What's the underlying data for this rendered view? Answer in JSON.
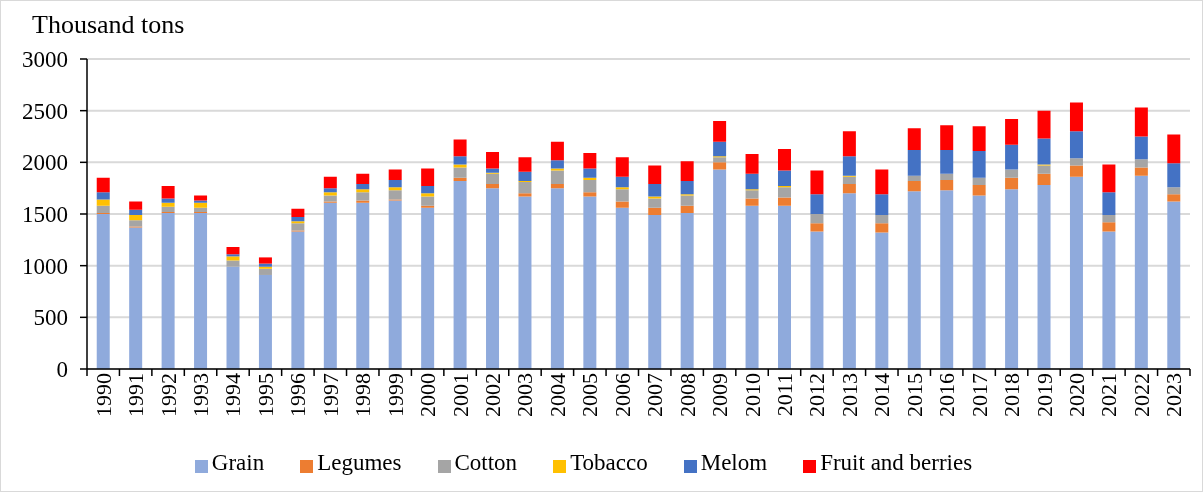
{
  "chart_data": {
    "type": "bar",
    "stacked": true,
    "ylabel": "Thousand tons",
    "categories": [
      "1990",
      "1991",
      "1992",
      "1993",
      "1994",
      "1995",
      "1996",
      "1997",
      "1998",
      "1999",
      "2000",
      "2001",
      "2002",
      "2003",
      "2004",
      "2005",
      "2006",
      "2007",
      "2008",
      "2009",
      "2010",
      "2011",
      "2012",
      "2013",
      "2014",
      "2015",
      "2016",
      "2017",
      "2018",
      "2019",
      "2020",
      "2021",
      "2022",
      "2023"
    ],
    "series": [
      {
        "name": "Grain",
        "color": "#8faadc",
        "values": [
          1500,
          1370,
          1510,
          1510,
          990,
          910,
          1330,
          1610,
          1610,
          1630,
          1560,
          1820,
          1750,
          1670,
          1750,
          1670,
          1560,
          1490,
          1510,
          1930,
          1580,
          1580,
          1330,
          1700,
          1320,
          1720,
          1730,
          1680,
          1740,
          1780,
          1860,
          1330,
          1870,
          1620
        ]
      },
      {
        "name": "Legumes",
        "color": "#ed7d31",
        "values": [
          10,
          10,
          10,
          10,
          0,
          0,
          10,
          10,
          20,
          10,
          20,
          30,
          40,
          30,
          40,
          40,
          60,
          70,
          70,
          70,
          70,
          80,
          80,
          90,
          90,
          100,
          100,
          100,
          110,
          110,
          110,
          90,
          80,
          70
        ]
      },
      {
        "name": "Cotton",
        "color": "#a5a5a5",
        "values": [
          70,
          60,
          50,
          40,
          60,
          60,
          70,
          60,
          80,
          90,
          90,
          100,
          100,
          110,
          130,
          120,
          120,
          90,
          100,
          50,
          80,
          100,
          90,
          70,
          80,
          50,
          60,
          70,
          80,
          80,
          70,
          70,
          80,
          70
        ]
      },
      {
        "name": "Tobacco",
        "color": "#ffc000",
        "values": [
          60,
          50,
          40,
          50,
          40,
          20,
          20,
          30,
          30,
          30,
          30,
          30,
          10,
          10,
          20,
          20,
          20,
          20,
          10,
          10,
          10,
          10,
          0,
          10,
          0,
          0,
          0,
          0,
          0,
          10,
          0,
          0,
          0,
          0
        ]
      },
      {
        "name": "Melom",
        "color": "#4472c4",
        "values": [
          70,
          50,
          40,
          20,
          20,
          30,
          40,
          40,
          50,
          70,
          70,
          80,
          40,
          90,
          80,
          90,
          100,
          120,
          130,
          140,
          150,
          150,
          190,
          190,
          200,
          250,
          230,
          260,
          240,
          250,
          260,
          220,
          220,
          230
        ]
      },
      {
        "name": "Fruit and berries",
        "color": "#ff0000",
        "values": [
          140,
          80,
          120,
          50,
          70,
          60,
          80,
          110,
          100,
          100,
          170,
          160,
          160,
          140,
          180,
          150,
          190,
          180,
          190,
          200,
          190,
          210,
          230,
          240,
          240,
          210,
          240,
          240,
          250,
          270,
          280,
          270,
          280,
          280
        ]
      }
    ],
    "ylim": [
      0,
      3000
    ],
    "yticks": [
      0,
      500,
      1000,
      1500,
      2000,
      2500,
      3000
    ],
    "grid": "y",
    "legend": "bottom"
  }
}
